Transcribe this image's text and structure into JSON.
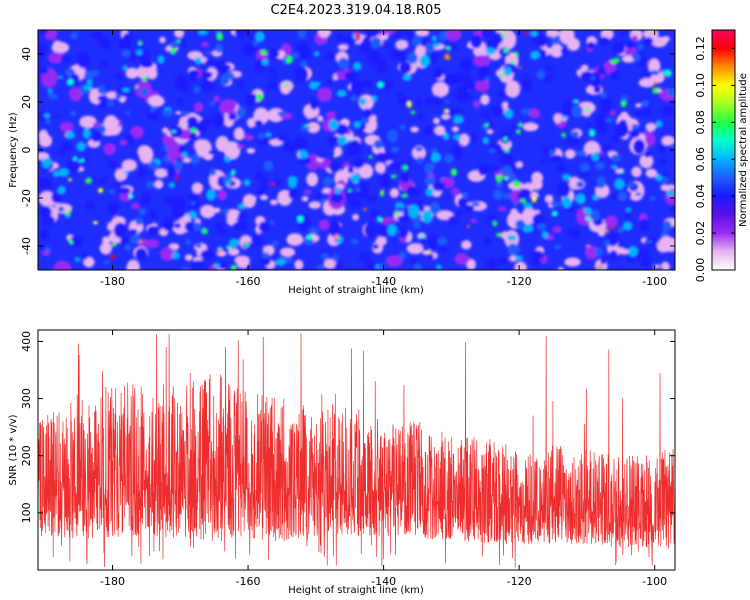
{
  "page": {
    "title": "C2E4.2023.319.04.18.R05"
  },
  "chart_data": [
    {
      "type": "heatmap",
      "xlabel": "Height of straight line (km)",
      "ylabel": "Frequency (Hz)",
      "xlim": [
        -191,
        -97
      ],
      "ylim": [
        -50,
        50
      ],
      "xticks": [
        "-180",
        "-160",
        "-140",
        "-120",
        "-100"
      ],
      "xtick_values": [
        -180,
        -160,
        -140,
        -120,
        -100
      ],
      "yticks": [
        "-40",
        "-20",
        "0",
        "20",
        "40"
      ],
      "ytick_values": [
        -40,
        -20,
        0,
        20,
        40
      ],
      "colorbar": {
        "label": "Normalized spectral amplitude",
        "range": [
          0,
          0.13
        ],
        "ticks": [
          "0.00",
          "0.02",
          "0.04",
          "0.06",
          "0.08",
          "0.10",
          "0.12"
        ],
        "tick_values": [
          0,
          0.02,
          0.04,
          0.06,
          0.08,
          0.1,
          0.12
        ],
        "colormap": [
          "#ffffff",
          "#e6b3f2",
          "#9a2cf2",
          "#5a10e8",
          "#1a1aff",
          "#1f5cff",
          "#00b3ff",
          "#00ffd0",
          "#22ff44",
          "#a0ff20",
          "#ffff00",
          "#ff8c00",
          "#ff0000",
          "#ff0066"
        ]
      },
      "summary": "Dense noise-like field; background mostly blue (~0.02-0.03) with scattered cyan/green blobs (~0.04-0.06) and rare yellow/red peaks (~0.10-0.12).",
      "grid": false
    },
    {
      "type": "line",
      "xlabel": "Height of straight line (km)",
      "ylabel": "SNR (10 * v/v)",
      "xlim": [
        -191,
        -97
      ],
      "ylim": [
        0,
        420
      ],
      "xticks": [
        "-180",
        "-160",
        "-140",
        "-120",
        "-100"
      ],
      "xtick_values": [
        -180,
        -160,
        -140,
        -120,
        -100
      ],
      "yticks": [
        "100",
        "200",
        "300",
        "400"
      ],
      "ytick_values": [
        100,
        200,
        300,
        400
      ],
      "series": [
        {
          "color": "#ee2e2e",
          "envelope": {
            "x": [
              -191,
              -185,
              -180,
              -175,
              -170,
              -165,
              -160,
              -155,
              -150,
              -145,
              -140,
              -135,
              -130,
              -125,
              -120,
              -115,
              -110,
              -105,
              -100,
              -97
            ],
            "low": [
              60,
              55,
              55,
              60,
              55,
              50,
              55,
              50,
              55,
              55,
              60,
              55,
              50,
              45,
              45,
              45,
              45,
              40,
              40,
              45
            ],
            "mean": [
              150,
              150,
              150,
              150,
              155,
              160,
              150,
              145,
              145,
              140,
              130,
              125,
              120,
              115,
              110,
              110,
              110,
              105,
              105,
              110
            ],
            "high": [
              260,
              310,
              330,
              330,
              320,
              350,
              310,
              300,
              290,
              290,
              260,
              260,
              240,
              230,
              220,
              220,
              210,
              200,
              200,
              220
            ]
          },
          "peak_max": 420
        }
      ],
      "grid": false
    }
  ]
}
